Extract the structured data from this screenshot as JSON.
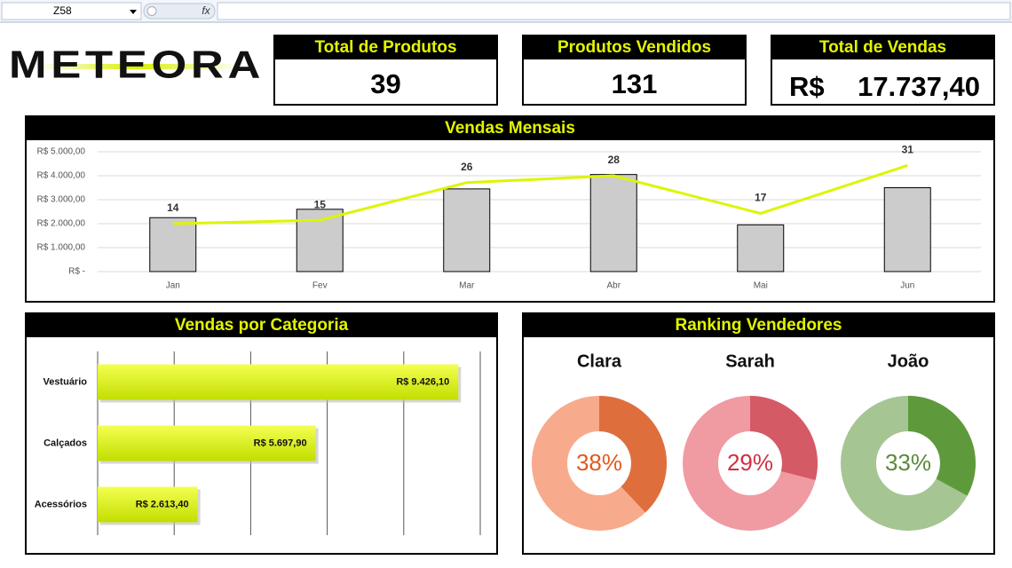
{
  "formula_bar": {
    "cell": "Z58",
    "function_icon": "fx"
  },
  "logo": "METEORA",
  "kpis": [
    {
      "title": "Total de Produtos",
      "value": 39
    },
    {
      "title": "Produtos Vendidos",
      "value": 131
    },
    {
      "title": "Total de Vendas",
      "currency": "R$",
      "value": "17.737,40"
    }
  ],
  "chart_data": [
    {
      "type": "bar_line",
      "title": "Vendas Mensais",
      "categories": [
        "Jan",
        "Fev",
        "Mar",
        "Abr",
        "Mai",
        "Jun"
      ],
      "series": [
        {
          "type": "bar",
          "color": "#cccccc",
          "values": [
            2250,
            2600,
            3450,
            4050,
            1950,
            3500
          ]
        },
        {
          "type": "line",
          "axis": "y2",
          "color": "#ddf500",
          "values": [
            14,
            15,
            26,
            28,
            17,
            31
          ]
        }
      ],
      "ylim": [
        0,
        5000
      ],
      "yticks": [
        {
          "value": 0,
          "label": "R$ -"
        },
        {
          "value": 1000,
          "label": "R$ 1.000,00"
        },
        {
          "value": 2000,
          "label": "R$ 2.000,00"
        },
        {
          "value": 3000,
          "label": "R$ 3.000,00"
        },
        {
          "value": 4000,
          "label": "R$ 4.000,00"
        },
        {
          "value": 5000,
          "label": "R$ 5.000,00"
        }
      ],
      "y2lim": [
        0,
        35
      ],
      "grid": true
    },
    {
      "type": "hbar",
      "title": "Vendas por Categoria",
      "categories": [
        "Vestuário",
        "Calçados",
        "Acessórios"
      ],
      "values": [
        9426.1,
        5697.9,
        2613.4
      ],
      "value_labels": [
        "R$ 9.426,10",
        "R$ 5.697,90",
        "R$ 2.613,40"
      ],
      "xlim": [
        0,
        10000
      ],
      "xticks": [
        0,
        2000,
        4000,
        6000,
        8000,
        10000
      ],
      "colors": [
        "#f4ff50",
        "#c2de00"
      ],
      "grid": true
    },
    {
      "type": "donut",
      "title": "Ranking Vendedores",
      "series": [
        {
          "name": "Clara",
          "values": [
            38
          ],
          "value_labels": [
            "38%"
          ],
          "colors": [
            "#de6f3d",
            "#f8aa8c"
          ],
          "label_color": "#e05a20"
        },
        {
          "name": "Sarah",
          "values": [
            29
          ],
          "value_labels": [
            "29%"
          ],
          "colors": [
            "#d45a66",
            "#f09aa2"
          ],
          "label_color": "#d03040"
        },
        {
          "name": "João",
          "values": [
            33
          ],
          "value_labels": [
            "33%"
          ],
          "colors": [
            "#5e9a3c",
            "#a5c592"
          ],
          "label_color": "#5a8a3a"
        }
      ]
    }
  ]
}
